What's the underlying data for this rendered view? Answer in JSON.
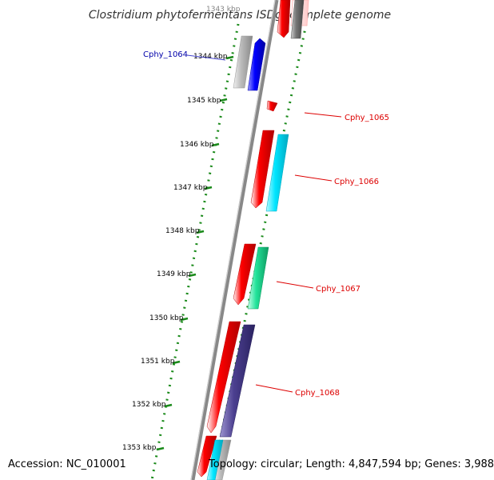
{
  "title": "Clostridium phytofermentans ISDg, complete genome",
  "faded_top_tick": "1343 kbp",
  "ticks": [
    "1344 kbp",
    "1345 kbp",
    "1346 kbp",
    "1347 kbp",
    "1348 kbp",
    "1349 kbp",
    "1350 kbp",
    "1351 kbp",
    "1352 kbp",
    "1353 kbp"
  ],
  "genes": [
    {
      "label": "Cphy_1064",
      "color": "#0000aa"
    },
    {
      "label": "Cphy_1065",
      "color": "#dd0000"
    },
    {
      "label": "Cphy_1066",
      "color": "#dd0000"
    },
    {
      "label": "Cphy_1067",
      "color": "#dd0000"
    },
    {
      "label": "Cphy_1068",
      "color": "#dd0000"
    }
  ],
  "colors": {
    "cds_forward": "#ff0000",
    "cds_reverse": "#0000ff",
    "category_cyan": "#00e5ff",
    "category_green": "#22e39a",
    "category_purple": "#4b3f8f",
    "category_gray": "#aaaaaa",
    "tick_green": "#1a8a1a",
    "backbone": "#888888"
  },
  "footer": {
    "accession": "Accession: NC_010001",
    "stats": "Topology: circular; Length: 4,847,594 bp; Genes: 3,988"
  }
}
